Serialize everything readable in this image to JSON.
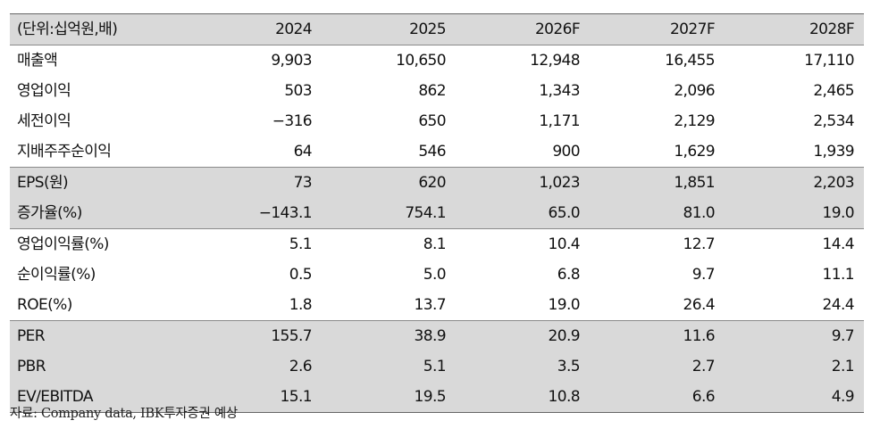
{
  "table": {
    "header": [
      "(단위:십억원,배)",
      "2024",
      "2025",
      "2026F",
      "2027F",
      "2028F"
    ],
    "rows": [
      {
        "label": "매출액",
        "values": [
          "9,903",
          "10,650",
          "12,948",
          "16,455",
          "17,110"
        ]
      },
      {
        "label": "영업이익",
        "values": [
          "503",
          "862",
          "1,343",
          "2,096",
          "2,465"
        ]
      },
      {
        "label": "세전이익",
        "values": [
          "−316",
          "650",
          "1,171",
          "2,129",
          "2,534"
        ]
      },
      {
        "label": "지배주주순이익",
        "values": [
          "64",
          "546",
          "900",
          "1,629",
          "1,939"
        ]
      },
      {
        "label": "EPS(원)",
        "values": [
          "73",
          "620",
          "1,023",
          "1,851",
          "2,203"
        ]
      },
      {
        "label": "증가율(%)",
        "values": [
          "−143.1",
          "754.1",
          "65.0",
          "81.0",
          "19.0"
        ]
      },
      {
        "label": "영업이익률(%)",
        "values": [
          "5.1",
          "8.1",
          "10.4",
          "12.7",
          "14.4"
        ]
      },
      {
        "label": "순이익률(%)",
        "values": [
          "0.5",
          "5.0",
          "6.8",
          "9.7",
          "11.1"
        ]
      },
      {
        "label": "ROE(%)",
        "values": [
          "1.8",
          "13.7",
          "19.0",
          "26.4",
          "24.4"
        ]
      },
      {
        "label": "PER",
        "values": [
          "155.7",
          "38.9",
          "20.9",
          "11.6",
          "9.7"
        ]
      },
      {
        "label": "PBR",
        "values": [
          "2.6",
          "5.1",
          "3.5",
          "2.7",
          "2.1"
        ]
      },
      {
        "label": "EV/EBITDA",
        "values": [
          "15.1",
          "19.5",
          "10.8",
          "6.6",
          "4.9"
        ]
      }
    ]
  },
  "source_note": "자료: Company data, IBK투자증권 예상",
  "colors": {
    "shade": "#d9d9d9",
    "rule": "#666666",
    "text": "#111111"
  }
}
